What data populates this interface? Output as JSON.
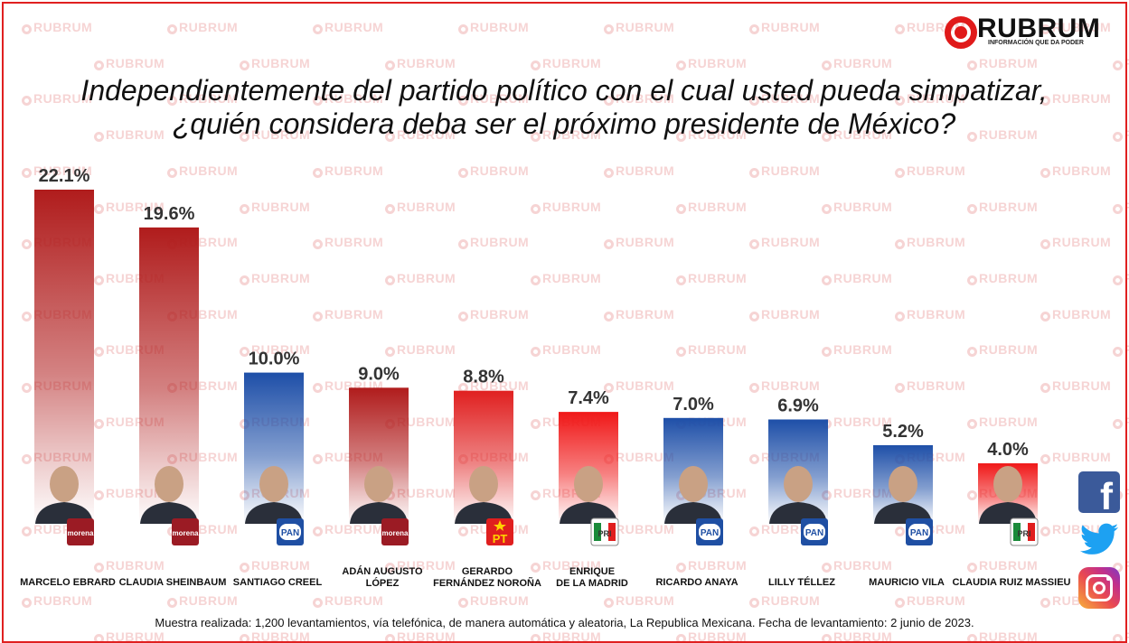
{
  "brand": {
    "name": "RUBRUM",
    "tagline": "INFORMACIÓN QUE DA PODER",
    "watermark": "RUBRUM",
    "accent": "#e01a1a"
  },
  "title_line1": "Independientemente del partido político con el cual usted pueda simpatizar,",
  "title_line2": "¿quién considera deba ser el próximo presidente de México?",
  "footnote": "Muestra realizada: 1,200 levantamientos, vía telefónica, de manera automática y aleatoria,  La Republica Mexicana. Fecha de levantamiento: 2 junio de 2023.",
  "social": [
    "facebook-icon",
    "twitter-icon",
    "instagram-icon"
  ],
  "chart_data": {
    "type": "bar",
    "title": "Independientemente del partido político con el cual usted pueda simpatizar, ¿quién considera deba ser el próximo presidente de México?",
    "xlabel": "",
    "ylabel": "",
    "ylim": [
      0,
      22.1
    ],
    "grid": false,
    "legend": "none",
    "value_suffix": "%",
    "categories": [
      [
        "MARCELO EBRARD"
      ],
      [
        "CLAUDIA SHEINBAUM"
      ],
      [
        "SANTIAGO CREEL"
      ],
      [
        "ADÁN AUGUSTO",
        "LÓPEZ"
      ],
      [
        "GERARDO",
        "FERNÁNDEZ NOROÑA"
      ],
      [
        "ENRIQUE",
        "DE LA MADRID"
      ],
      [
        "RICARDO ANAYA"
      ],
      [
        "LILLY TÉLLEZ"
      ],
      [
        "MAURICIO VILA"
      ],
      [
        "CLAUDIA RUIZ MASSIEU"
      ]
    ],
    "values": [
      22.1,
      19.6,
      10.0,
      9.0,
      8.8,
      7.4,
      7.0,
      6.9,
      5.2,
      4.0
    ],
    "labels": [
      "22.1%",
      "19.6%",
      "10.0%",
      "9.0%",
      "8.8%",
      "7.4%",
      "7.0%",
      "6.9%",
      "5.2%",
      "4.0%"
    ],
    "parties": [
      "morena",
      "morena",
      "PAN",
      "morena",
      "PT",
      "PRI",
      "PAN",
      "PAN",
      "PAN",
      "PRI"
    ],
    "party_colors": {
      "morena": "#b01c1c",
      "PAN": "#1e4fa8",
      "PT": "#e02020",
      "PRI": "#f01818"
    }
  }
}
